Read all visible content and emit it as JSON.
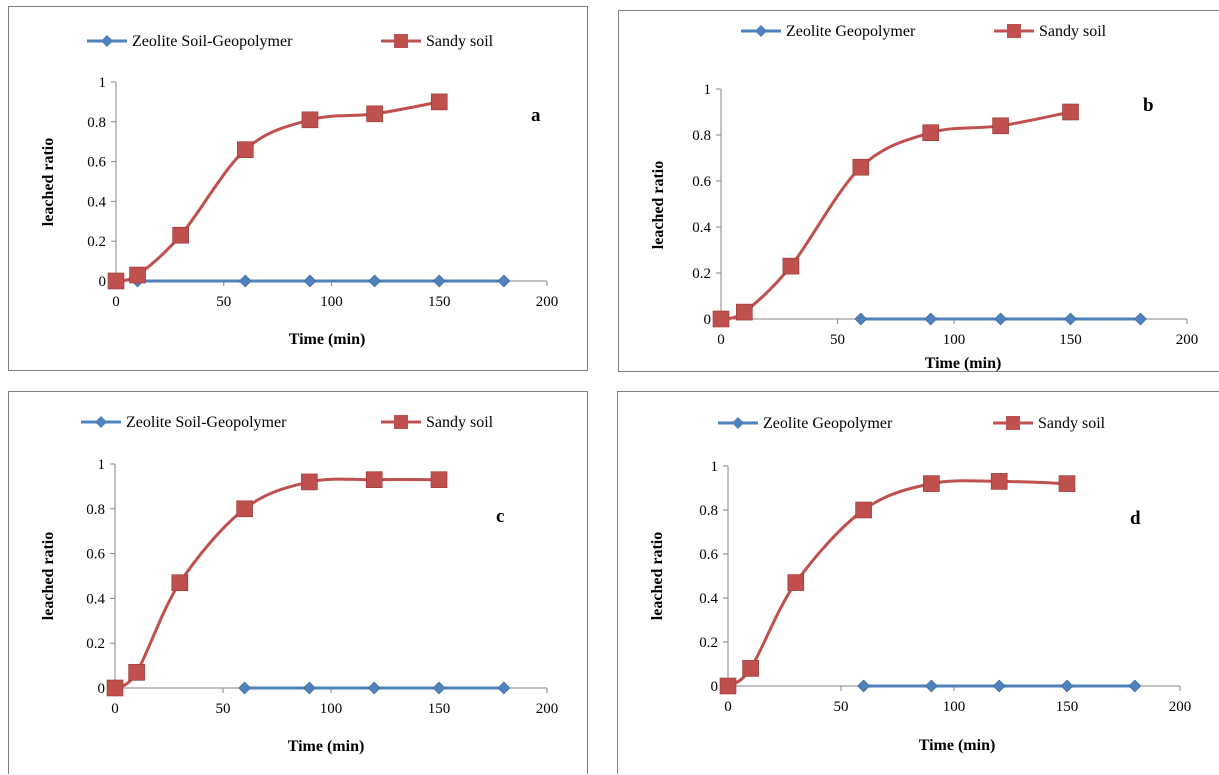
{
  "chart_data": [
    {
      "panel": "a",
      "type": "line",
      "panel_label": "a",
      "xlabel": "Time (min)",
      "ylabel": "leached ratio",
      "xlim": [
        0,
        200
      ],
      "ylim": [
        0,
        1
      ],
      "xticks": [
        "0",
        "50",
        "100",
        "150",
        "200"
      ],
      "yticks": [
        "0",
        "0.2",
        "0.4",
        "0.6",
        "0.8",
        "1"
      ],
      "legend_position": "top",
      "grid": false,
      "series": [
        {
          "name": "Zeolite Soil-Geopolymer",
          "color": "#4f81bd",
          "marker": "diamond",
          "x": [
            10,
            60,
            90,
            120,
            150,
            180
          ],
          "y": [
            0,
            0,
            0,
            0,
            0,
            0
          ]
        },
        {
          "name": "Sandy soil",
          "color": "#c0504d",
          "marker": "square",
          "x": [
            0,
            10,
            30,
            60,
            90,
            120,
            150
          ],
          "y": [
            0,
            0.03,
            0.23,
            0.66,
            0.81,
            0.84,
            0.9
          ]
        }
      ]
    },
    {
      "panel": "b",
      "type": "line",
      "panel_label": "b",
      "xlabel": "Time (min)",
      "ylabel": "leached ratio",
      "xlim": [
        0,
        200
      ],
      "ylim": [
        0,
        1
      ],
      "xticks": [
        "0",
        "50",
        "100",
        "150",
        "200"
      ],
      "yticks": [
        "0",
        "0.2",
        "0.4",
        "0.6",
        "0.8",
        "1"
      ],
      "legend_position": "top",
      "grid": false,
      "series": [
        {
          "name": "Zeolite Geopolymer",
          "color": "#4f81bd",
          "marker": "diamond",
          "x": [
            60,
            90,
            120,
            150,
            180
          ],
          "y": [
            0,
            0,
            0,
            0,
            0
          ]
        },
        {
          "name": "Sandy soil",
          "color": "#c0504d",
          "marker": "square",
          "x": [
            0,
            10,
            30,
            60,
            90,
            120,
            150
          ],
          "y": [
            0,
            0.03,
            0.23,
            0.66,
            0.81,
            0.84,
            0.9
          ]
        }
      ]
    },
    {
      "panel": "c",
      "type": "line",
      "panel_label": "c",
      "xlabel": "Time (min)",
      "ylabel": "leached ratio",
      "xlim": [
        0,
        200
      ],
      "ylim": [
        0,
        1
      ],
      "xticks": [
        "0",
        "50",
        "100",
        "150",
        "200"
      ],
      "yticks": [
        "0",
        "0.2",
        "0.4",
        "0.6",
        "0.8",
        "1"
      ],
      "legend_position": "top",
      "grid": false,
      "series": [
        {
          "name": "Zeolite Soil-Geopolymer",
          "color": "#4f81bd",
          "marker": "diamond",
          "x": [
            60,
            90,
            120,
            150,
            180
          ],
          "y": [
            0,
            0,
            0,
            0,
            0
          ]
        },
        {
          "name": "Sandy soil",
          "color": "#c0504d",
          "marker": "square",
          "x": [
            0,
            10,
            30,
            60,
            90,
            120,
            150
          ],
          "y": [
            0,
            0.07,
            0.47,
            0.8,
            0.92,
            0.93,
            0.93
          ]
        }
      ]
    },
    {
      "panel": "d",
      "type": "line",
      "panel_label": "d",
      "xlabel": "Time (min)",
      "ylabel": "leached ratio",
      "xlim": [
        0,
        200
      ],
      "ylim": [
        0,
        1
      ],
      "xticks": [
        "0",
        "50",
        "100",
        "150",
        "200"
      ],
      "yticks": [
        "0",
        "0.2",
        "0.4",
        "0.6",
        "0.8",
        "1"
      ],
      "legend_position": "top",
      "grid": false,
      "series": [
        {
          "name": "Zeolite Geopolymer",
          "color": "#4f81bd",
          "marker": "diamond",
          "x": [
            60,
            90,
            120,
            150,
            180
          ],
          "y": [
            0,
            0,
            0,
            0,
            0
          ]
        },
        {
          "name": "Sandy soil",
          "color": "#c0504d",
          "marker": "square",
          "x": [
            0,
            10,
            30,
            60,
            90,
            120,
            150
          ],
          "y": [
            0,
            0.08,
            0.47,
            0.8,
            0.92,
            0.93,
            0.92
          ]
        }
      ]
    }
  ]
}
